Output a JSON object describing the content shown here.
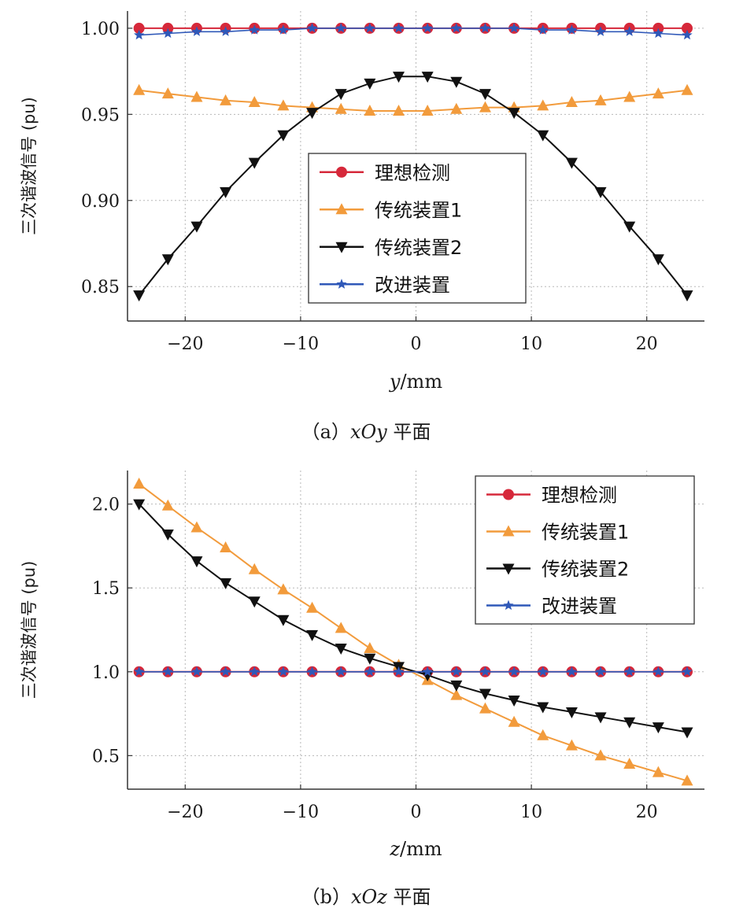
{
  "series_colors": {
    "理想检测": "#d6283a",
    "传统装置1": "#f29b3c",
    "传统装置2": "#111111",
    "改进装置": "#2f58b8"
  },
  "chart_data": [
    {
      "type": "line",
      "ylabel": "三次谐波信号 (pu)",
      "xlabel_var": "y",
      "xlabel_unit": "/mm",
      "caption_prefix": "（a）",
      "caption_var": "xOy",
      "caption_suffix": " 平面",
      "xlim": [
        -25,
        25
      ],
      "ylim": [
        0.83,
        1.01
      ],
      "xticks": [
        -20,
        -10,
        0,
        10,
        20
      ],
      "xtick_labels": [
        "−20",
        "−10",
        "0",
        "10",
        "20"
      ],
      "yticks": [
        0.85,
        0.9,
        0.95,
        1.0
      ],
      "ytick_labels": [
        "0.85",
        "0.90",
        "0.95",
        "1.00"
      ],
      "grid": true,
      "legend_position": "center",
      "x": [
        -24,
        -21.5,
        -19,
        -16.5,
        -14,
        -11.5,
        -9,
        -6.5,
        -4,
        -1.5,
        1,
        3.5,
        6,
        8.5,
        11,
        13.5,
        16,
        18.5,
        21,
        23.5
      ],
      "series": [
        {
          "name": "理想检测",
          "marker": "circle",
          "values": [
            1.0,
            1.0,
            1.0,
            1.0,
            1.0,
            1.0,
            1.0,
            1.0,
            1.0,
            1.0,
            1.0,
            1.0,
            1.0,
            1.0,
            1.0,
            1.0,
            1.0,
            1.0,
            1.0,
            1.0
          ]
        },
        {
          "name": "传统装置1",
          "marker": "triangle-up",
          "values": [
            0.964,
            0.962,
            0.96,
            0.958,
            0.957,
            0.955,
            0.954,
            0.953,
            0.952,
            0.952,
            0.952,
            0.953,
            0.954,
            0.954,
            0.955,
            0.957,
            0.958,
            0.96,
            0.962,
            0.964
          ]
        },
        {
          "name": "传统装置2",
          "marker": "triangle-down",
          "values": [
            0.845,
            0.866,
            0.885,
            0.905,
            0.922,
            0.938,
            0.951,
            0.962,
            0.968,
            0.972,
            0.972,
            0.969,
            0.962,
            0.951,
            0.938,
            0.922,
            0.905,
            0.885,
            0.866,
            0.845
          ]
        },
        {
          "name": "改进装置",
          "marker": "star",
          "values": [
            0.996,
            0.997,
            0.998,
            0.998,
            0.999,
            0.999,
            1.0,
            1.0,
            1.0,
            1.0,
            1.0,
            1.0,
            1.0,
            1.0,
            0.999,
            0.999,
            0.998,
            0.998,
            0.997,
            0.996
          ]
        }
      ]
    },
    {
      "type": "line",
      "ylabel": "三次谐波信号 (pu)",
      "xlabel_var": "z",
      "xlabel_unit": "/mm",
      "caption_prefix": "（b）",
      "caption_var": "xOz",
      "caption_suffix": " 平面",
      "xlim": [
        -25,
        25
      ],
      "ylim": [
        0.3,
        2.2
      ],
      "xticks": [
        -20,
        -10,
        0,
        10,
        20
      ],
      "xtick_labels": [
        "−20",
        "−10",
        "0",
        "10",
        "20"
      ],
      "yticks": [
        0.5,
        1.0,
        1.5,
        2.0
      ],
      "ytick_labels": [
        "0.5",
        "1.0",
        "1.5",
        "2.0"
      ],
      "grid": true,
      "legend_position": "top-right",
      "x": [
        -24,
        -21.5,
        -19,
        -16.5,
        -14,
        -11.5,
        -9,
        -6.5,
        -4,
        -1.5,
        1,
        3.5,
        6,
        8.5,
        11,
        13.5,
        16,
        18.5,
        21,
        23.5
      ],
      "series": [
        {
          "name": "理想检测",
          "marker": "circle",
          "values": [
            1.0,
            1.0,
            1.0,
            1.0,
            1.0,
            1.0,
            1.0,
            1.0,
            1.0,
            1.0,
            1.0,
            1.0,
            1.0,
            1.0,
            1.0,
            1.0,
            1.0,
            1.0,
            1.0,
            1.0
          ]
        },
        {
          "name": "传统装置1",
          "marker": "triangle-up",
          "values": [
            2.12,
            1.99,
            1.86,
            1.74,
            1.61,
            1.49,
            1.38,
            1.26,
            1.14,
            1.04,
            0.95,
            0.86,
            0.78,
            0.7,
            0.62,
            0.56,
            0.5,
            0.45,
            0.4,
            0.35
          ]
        },
        {
          "name": "传统装置2",
          "marker": "triangle-down",
          "values": [
            2.0,
            1.82,
            1.66,
            1.53,
            1.42,
            1.31,
            1.22,
            1.14,
            1.08,
            1.03,
            0.98,
            0.92,
            0.87,
            0.83,
            0.79,
            0.76,
            0.73,
            0.7,
            0.67,
            0.64
          ]
        },
        {
          "name": "改进装置",
          "marker": "star",
          "values": [
            1.0,
            1.0,
            1.0,
            1.0,
            1.0,
            1.0,
            1.0,
            1.0,
            1.0,
            1.0,
            1.0,
            1.0,
            1.0,
            1.0,
            1.0,
            1.0,
            1.0,
            1.0,
            1.0,
            1.0
          ]
        }
      ]
    }
  ]
}
